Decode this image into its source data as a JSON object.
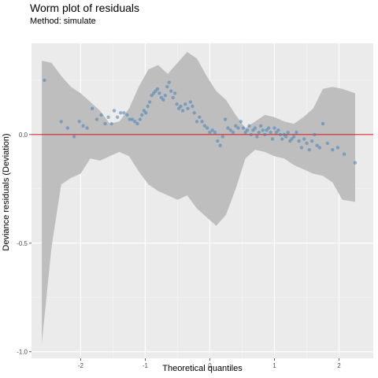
{
  "chart_data": {
    "type": "scatter",
    "title": "Worm plot of residuals",
    "subtitle": "Method: simulate",
    "xlabel": "Theoretical quantiles",
    "ylabel": "Deviance residuals (Deviation)",
    "xlim": [
      -2.76,
      2.53
    ],
    "ylim": [
      -1.03,
      0.42
    ],
    "x_ticks": [
      -2,
      -1,
      0,
      1,
      2
    ],
    "x_tick_labels": [
      "-2",
      "-1",
      "0",
      "1",
      "2"
    ],
    "y_ticks": [
      0.0,
      -0.5,
      -1.0
    ],
    "y_tick_labels": [
      "0.0",
      "-0.5",
      "-1.0"
    ],
    "reference_line": {
      "y": 0.0,
      "color": "#d62728"
    },
    "point_color": "#4682b4",
    "band_color": "#bebebe",
    "background": "#ebebeb",
    "grid": true,
    "band": {
      "x": [
        -2.6,
        -2.45,
        -2.3,
        -2.15,
        -2.0,
        -1.85,
        -1.7,
        -1.55,
        -1.4,
        -1.25,
        -1.1,
        -0.95,
        -0.8,
        -0.65,
        -0.5,
        -0.35,
        -0.2,
        -0.05,
        0.1,
        0.25,
        0.4,
        0.55,
        0.7,
        0.85,
        1.0,
        1.15,
        1.3,
        1.45,
        1.6,
        1.75,
        1.9,
        2.05,
        2.25
      ],
      "upper": [
        0.34,
        0.33,
        0.27,
        0.22,
        0.19,
        0.15,
        0.11,
        0.05,
        0.06,
        0.12,
        0.22,
        0.3,
        0.32,
        0.28,
        0.33,
        0.38,
        0.35,
        0.27,
        0.2,
        0.16,
        0.09,
        0.03,
        0.06,
        0.09,
        0.08,
        0.06,
        0.05,
        0.08,
        0.12,
        0.21,
        0.22,
        0.21,
        0.19
      ],
      "lower": [
        -0.96,
        -0.52,
        -0.23,
        -0.2,
        -0.18,
        -0.11,
        -0.12,
        -0.1,
        -0.08,
        -0.1,
        -0.17,
        -0.23,
        -0.26,
        -0.28,
        -0.3,
        -0.28,
        -0.34,
        -0.38,
        -0.42,
        -0.37,
        -0.25,
        -0.11,
        -0.07,
        -0.08,
        -0.1,
        -0.11,
        -0.14,
        -0.16,
        -0.18,
        -0.19,
        -0.22,
        -0.3,
        -0.31
      ]
    },
    "points": [
      [
        -2.56,
        0.25
      ],
      [
        -2.3,
        0.06
      ],
      [
        -2.2,
        0.03
      ],
      [
        -2.1,
        -0.01
      ],
      [
        -2.02,
        0.06
      ],
      [
        -1.96,
        0.04
      ],
      [
        -1.9,
        0.03
      ],
      [
        -1.82,
        0.12
      ],
      [
        -1.75,
        0.07
      ],
      [
        -1.68,
        0.09
      ],
      [
        -1.62,
        0.05
      ],
      [
        -1.57,
        0.08
      ],
      [
        -1.52,
        0.05
      ],
      [
        -1.48,
        0.11
      ],
      [
        -1.43,
        0.08
      ],
      [
        -1.38,
        0.1
      ],
      [
        -1.33,
        0.1
      ],
      [
        -1.28,
        0.09
      ],
      [
        -1.24,
        0.07
      ],
      [
        -1.2,
        0.07
      ],
      [
        -1.16,
        0.06
      ],
      [
        -1.12,
        0.05
      ],
      [
        -1.08,
        0.07
      ],
      [
        -1.05,
        0.09
      ],
      [
        -1.02,
        0.11
      ],
      [
        -0.99,
        0.1
      ],
      [
        -0.96,
        0.13
      ],
      [
        -0.93,
        0.15
      ],
      [
        -0.9,
        0.18
      ],
      [
        -0.87,
        0.19
      ],
      [
        -0.84,
        0.2
      ],
      [
        -0.81,
        0.21
      ],
      [
        -0.78,
        0.19
      ],
      [
        -0.75,
        0.17
      ],
      [
        -0.72,
        0.16
      ],
      [
        -0.69,
        0.18
      ],
      [
        -0.66,
        0.22
      ],
      [
        -0.63,
        0.24
      ],
      [
        -0.6,
        0.2
      ],
      [
        -0.57,
        0.17
      ],
      [
        -0.54,
        0.19
      ],
      [
        -0.51,
        0.14
      ],
      [
        -0.48,
        0.12
      ],
      [
        -0.45,
        0.13
      ],
      [
        -0.42,
        0.11
      ],
      [
        -0.38,
        0.14
      ],
      [
        -0.34,
        0.12
      ],
      [
        -0.3,
        0.15
      ],
      [
        -0.27,
        0.13
      ],
      [
        -0.24,
        0.1
      ],
      [
        -0.2,
        0.06
      ],
      [
        -0.16,
        0.08
      ],
      [
        -0.12,
        0.06
      ],
      [
        -0.08,
        0.04
      ],
      [
        -0.04,
        0.03
      ],
      [
        0.0,
        0.01
      ],
      [
        0.04,
        0.02
      ],
      [
        0.08,
        0.01
      ],
      [
        0.12,
        -0.03
      ],
      [
        0.16,
        -0.05
      ],
      [
        0.2,
        -0.01
      ],
      [
        0.24,
        0.07
      ],
      [
        0.28,
        0.03
      ],
      [
        0.32,
        0.02
      ],
      [
        0.36,
        0.01
      ],
      [
        0.4,
        0.04
      ],
      [
        0.44,
        0.03
      ],
      [
        0.48,
        0.06
      ],
      [
        0.52,
        0.03
      ],
      [
        0.55,
        0.01
      ],
      [
        0.58,
        0.02
      ],
      [
        0.61,
        0.04
      ],
      [
        0.64,
        0.0
      ],
      [
        0.67,
        0.02
      ],
      [
        0.7,
        0.03
      ],
      [
        0.73,
        -0.01
      ],
      [
        0.76,
        0.01
      ],
      [
        0.79,
        0.04
      ],
      [
        0.82,
        0.02
      ],
      [
        0.85,
        0.0
      ],
      [
        0.88,
        0.02
      ],
      [
        0.91,
        0.03
      ],
      [
        0.94,
        0.01
      ],
      [
        0.97,
        -0.02
      ],
      [
        1.0,
        0.03
      ],
      [
        1.03,
        0.01
      ],
      [
        1.06,
        0.02
      ],
      [
        1.09,
        0.0
      ],
      [
        1.12,
        -0.02
      ],
      [
        1.15,
        0.0
      ],
      [
        1.18,
        -0.01
      ],
      [
        1.21,
        0.01
      ],
      [
        1.24,
        -0.03
      ],
      [
        1.27,
        -0.02
      ],
      [
        1.3,
        -0.01
      ],
      [
        1.34,
        0.01
      ],
      [
        1.38,
        -0.03
      ],
      [
        1.42,
        -0.06
      ],
      [
        1.46,
        -0.02
      ],
      [
        1.5,
        -0.04
      ],
      [
        1.54,
        -0.07
      ],
      [
        1.58,
        -0.03
      ],
      [
        1.62,
        0.0
      ],
      [
        1.66,
        -0.05
      ],
      [
        1.7,
        -0.06
      ],
      [
        1.75,
        0.05
      ],
      [
        1.82,
        -0.04
      ],
      [
        1.9,
        -0.07
      ],
      [
        1.98,
        -0.06
      ],
      [
        2.08,
        -0.09
      ],
      [
        2.25,
        -0.13
      ]
    ]
  }
}
